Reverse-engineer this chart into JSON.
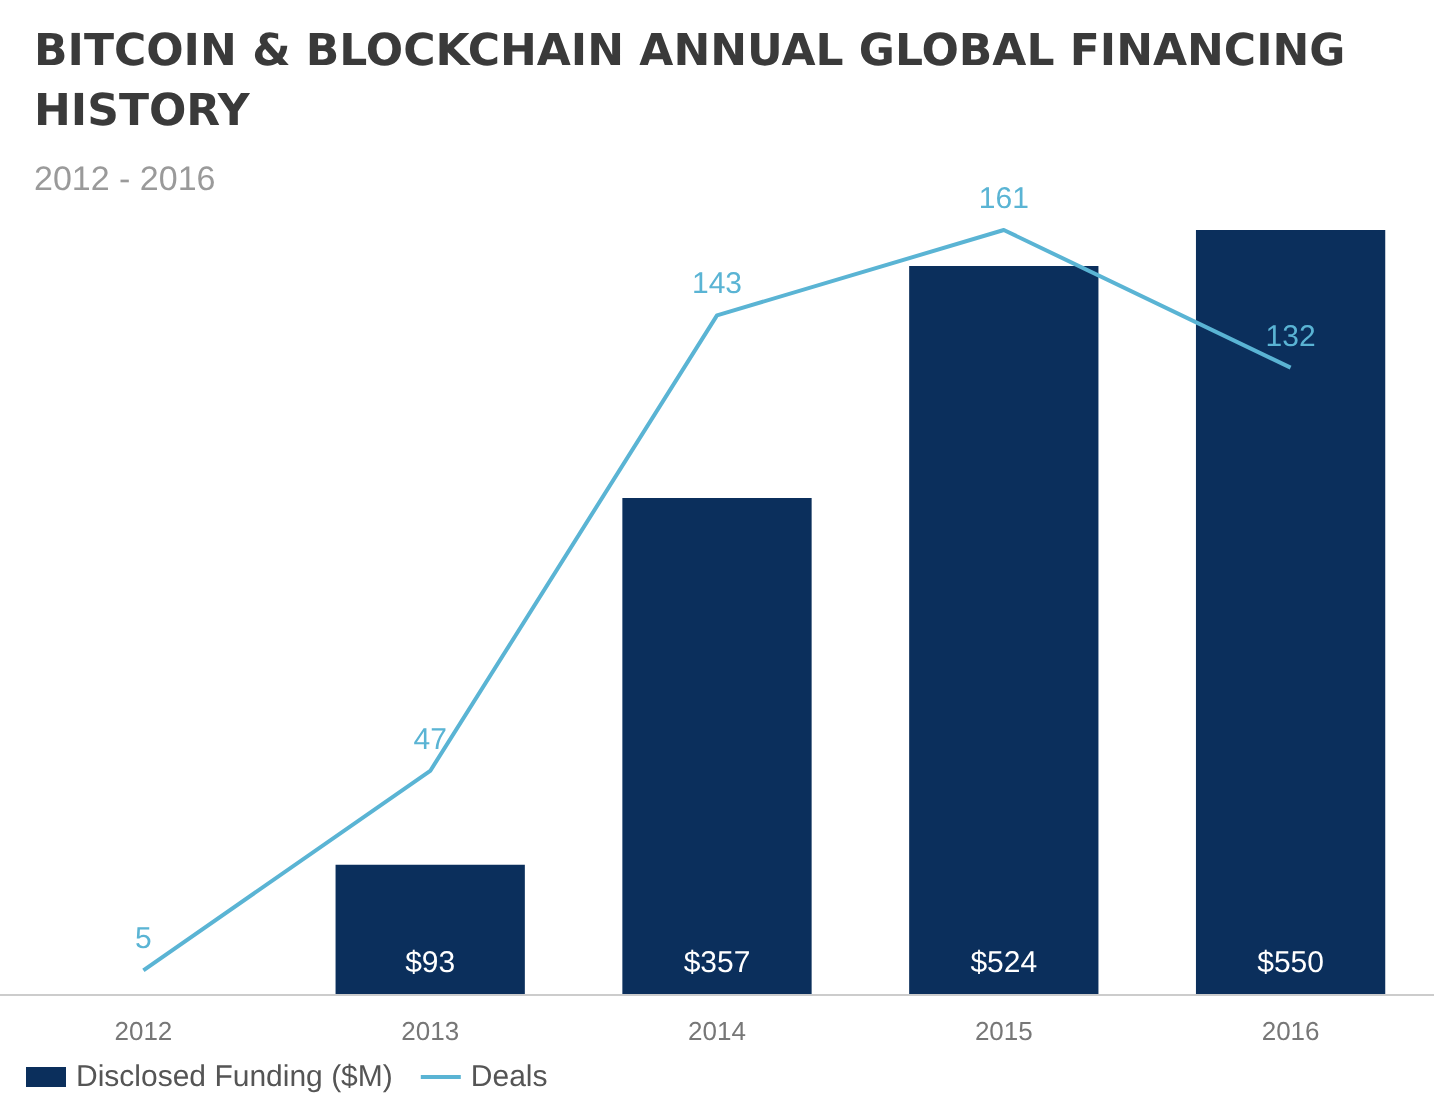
{
  "chart_data": {
    "type": "bar",
    "title": "BITCOIN & BLOCKCHAIN ANNUAL GLOBAL FINANCING HISTORY",
    "subtitle": "2012 - 2016",
    "categories": [
      "2012",
      "2013",
      "2014",
      "2015",
      "2016"
    ],
    "series": [
      {
        "name": "Disclosed Funding ($M)",
        "type": "bar",
        "color": "#0b2f5c",
        "values": [
          null,
          93,
          357,
          524,
          550
        ],
        "value_labels": [
          null,
          "$93",
          "$357",
          "$524",
          "$550"
        ]
      },
      {
        "name": "Deals",
        "type": "line",
        "axis": "y2",
        "color": "#5ab4d4",
        "values": [
          5,
          47,
          143,
          161,
          132
        ],
        "value_labels": [
          "5",
          "47",
          "143",
          "161",
          "132"
        ]
      }
    ],
    "legend": "bottom left",
    "grid": false,
    "marker": "none"
  }
}
